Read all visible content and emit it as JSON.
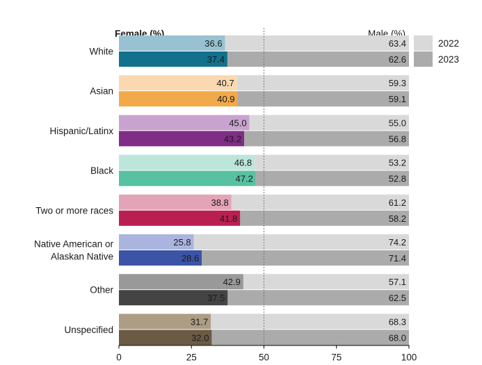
{
  "chart_data": {
    "type": "bar",
    "stacked": true,
    "orientation": "horizontal",
    "left_header": "Female (%)",
    "right_header": "Male (%)",
    "xlim": [
      0,
      100
    ],
    "xticks": [
      "0",
      "25",
      "50",
      "75",
      "100"
    ],
    "reference_line": 50,
    "legend": [
      "2022",
      "2023"
    ],
    "legend_colors": {
      "2022": "#d9d9d9",
      "2023": "#ababab"
    },
    "categories": [
      {
        "name": "White",
        "label_lines": [
          "White"
        ],
        "color_2022": "#98c2d1",
        "color_2023": "#12718c",
        "female": [
          36.6,
          37.4
        ],
        "female_labels": [
          "36.6",
          "37.4"
        ],
        "male_labels": [
          "63.4",
          "62.6"
        ]
      },
      {
        "name": "Asian",
        "label_lines": [
          "Asian"
        ],
        "color_2022": "#fbd9b0",
        "color_2023": "#f2a94a",
        "female": [
          40.7,
          40.9
        ],
        "female_labels": [
          "40.7",
          "40.9"
        ],
        "male_labels": [
          "59.3",
          "59.1"
        ]
      },
      {
        "name": "Hispanic/Latinx",
        "label_lines": [
          "Hispanic/Latinx"
        ],
        "color_2022": "#c9a3cf",
        "color_2023": "#7f2d86",
        "female": [
          45.0,
          43.2
        ],
        "female_labels": [
          "45.0",
          "43.2"
        ],
        "male_labels": [
          "55.0",
          "56.8"
        ]
      },
      {
        "name": "Black",
        "label_lines": [
          "Black"
        ],
        "color_2022": "#bde6da",
        "color_2023": "#58c1a1",
        "female": [
          46.8,
          47.2
        ],
        "female_labels": [
          "46.8",
          "47.2"
        ],
        "male_labels": [
          "53.2",
          "52.8"
        ]
      },
      {
        "name": "Two or more races",
        "label_lines": [
          "Two or more races"
        ],
        "color_2022": "#e4a4b8",
        "color_2023": "#ba1f52",
        "female": [
          38.8,
          41.8
        ],
        "female_labels": [
          "38.8",
          "41.8"
        ],
        "male_labels": [
          "61.2",
          "58.2"
        ]
      },
      {
        "name": "Native American or Alaskan Native",
        "label_lines": [
          "Native American or",
          "Alaskan Native"
        ],
        "color_2022": "#aab4df",
        "color_2023": "#3b54a6",
        "female": [
          25.8,
          28.6
        ],
        "female_labels": [
          "25.8",
          "28.6"
        ],
        "male_labels": [
          "74.2",
          "71.4"
        ]
      },
      {
        "name": "Other",
        "label_lines": [
          "Other"
        ],
        "color_2022": "#999999",
        "color_2023": "#444444",
        "female": [
          42.9,
          37.5
        ],
        "female_labels": [
          "42.9",
          "37.5"
        ],
        "male_labels": [
          "57.1",
          "62.5"
        ]
      },
      {
        "name": "Unspecified",
        "label_lines": [
          "Unspecified"
        ],
        "color_2022": "#ad9d84",
        "color_2023": "#6b5b45",
        "female": [
          31.7,
          32.0
        ],
        "female_labels": [
          "31.7",
          "32.0"
        ],
        "male_labels": [
          "68.3",
          "68.0"
        ]
      }
    ]
  }
}
